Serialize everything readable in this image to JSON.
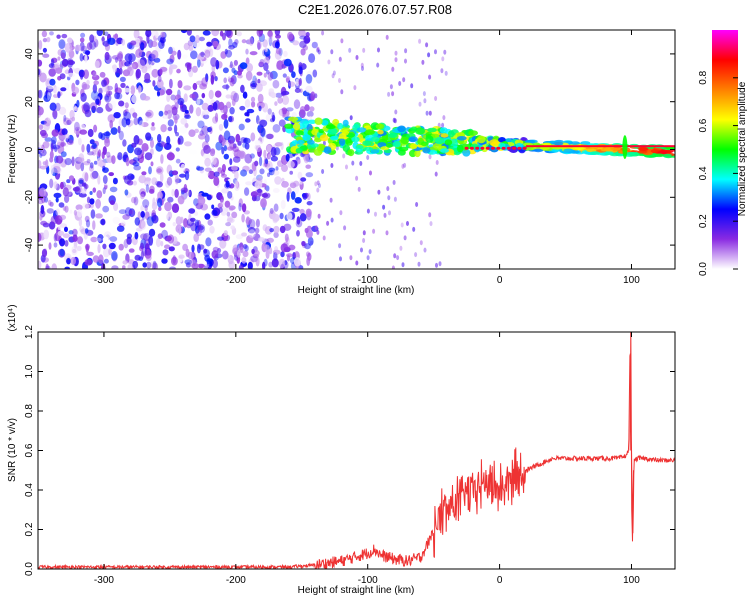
{
  "title": "C2E1.2026.076.07.57.R08",
  "chart_data": [
    {
      "type": "heatmap",
      "title": "C2E1.2026.076.07.57.R08",
      "xlabel": "Height of straight line (km)",
      "ylabel": "Frequency (Hz)",
      "xlim": [
        -350,
        133
      ],
      "ylim": [
        -50,
        50
      ],
      "xticks": [
        -300,
        -200,
        -100,
        0,
        100
      ],
      "xtick_labels": [
        "-300",
        "-200",
        "-100",
        "0",
        "100"
      ],
      "yticks": [
        -40,
        -20,
        0,
        20,
        40
      ],
      "ytick_labels": [
        "-40",
        "-20",
        "0",
        "20",
        "40"
      ],
      "colorbar": {
        "label": "Normalized spectral amplitude",
        "range": [
          0,
          1
        ],
        "ticks": [
          0.0,
          0.2,
          0.4,
          0.6,
          0.8
        ],
        "tick_labels": [
          "0.0",
          "0.2",
          "0.4",
          "0.6",
          "0.8"
        ],
        "colors": [
          "#ffffff",
          "#8a2be2",
          "#0000ff",
          "#00ffff",
          "#00ff00",
          "#ffff00",
          "#ff8000",
          "#ff0000",
          "#ff00ff"
        ]
      },
      "features": [
        {
          "name": "noise",
          "x_range": [
            -350,
            -140
          ],
          "y_range": [
            -50,
            50
          ],
          "amplitude": 0.25
        },
        {
          "name": "signal",
          "x_range": [
            -160,
            133
          ],
          "center_freq_start": 8,
          "center_freq_end": 1,
          "amplitude_start": 0.45,
          "amplitude_end": 0.95
        },
        {
          "name": "spike",
          "x": 95,
          "y_range": [
            -8,
            10
          ],
          "amplitude": 0.5
        }
      ]
    },
    {
      "type": "line",
      "xlabel": "Height of straight line (km)",
      "ylabel": "SNR (10 * v/v)",
      "y_multiplier": "(x10⁴)",
      "xlim": [
        -350,
        133
      ],
      "ylim": [
        0,
        1.2
      ],
      "xticks": [
        -300,
        -200,
        -100,
        0,
        100
      ],
      "xtick_labels": [
        "-300",
        "-200",
        "-100",
        "0",
        "100"
      ],
      "yticks": [
        0.0,
        0.2,
        0.4,
        0.6,
        0.8,
        1.0,
        1.2
      ],
      "ytick_labels": [
        "0.0",
        "0.2",
        "0.4",
        "0.6",
        "0.8",
        "1.0",
        "1.2"
      ],
      "color": "#ee3333",
      "series": [
        {
          "name": "SNR",
          "x": [
            -350,
            -300,
            -250,
            -200,
            -160,
            -140,
            -120,
            -110,
            -100,
            -95,
            -90,
            -80,
            -70,
            -60,
            -55,
            -50,
            -45,
            -40,
            -35,
            -30,
            -25,
            -20,
            -15,
            -10,
            -5,
            0,
            10,
            20,
            30,
            40,
            50,
            60,
            80,
            90,
            95,
            98,
            99,
            100,
            101,
            102,
            105,
            110,
            120,
            133
          ],
          "y": [
            0.01,
            0.01,
            0.01,
            0.01,
            0.01,
            0.02,
            0.04,
            0.06,
            0.08,
            0.1,
            0.07,
            0.05,
            0.04,
            0.06,
            0.12,
            0.2,
            0.26,
            0.3,
            0.33,
            0.35,
            0.38,
            0.4,
            0.42,
            0.44,
            0.42,
            0.4,
            0.45,
            0.5,
            0.53,
            0.56,
            0.56,
            0.56,
            0.56,
            0.56,
            0.57,
            0.6,
            1.2,
            0.6,
            0.16,
            0.55,
            0.56,
            0.56,
            0.55,
            0.55
          ]
        }
      ]
    }
  ]
}
